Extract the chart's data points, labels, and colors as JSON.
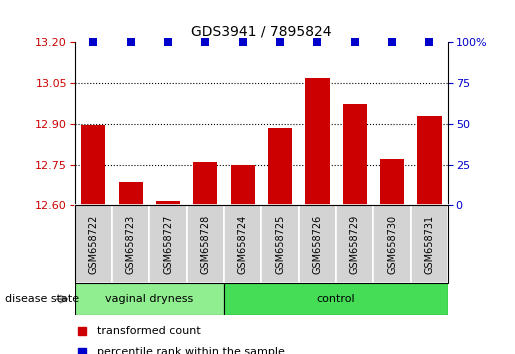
{
  "title": "GDS3941 / 7895824",
  "samples": [
    "GSM658722",
    "GSM658723",
    "GSM658727",
    "GSM658728",
    "GSM658724",
    "GSM658725",
    "GSM658726",
    "GSM658729",
    "GSM658730",
    "GSM658731"
  ],
  "red_values": [
    12.895,
    12.685,
    12.615,
    12.76,
    12.75,
    12.885,
    13.07,
    12.975,
    12.77,
    12.93
  ],
  "blue_values": [
    100,
    100,
    100,
    100,
    100,
    100,
    100,
    100,
    100,
    100
  ],
  "ylim_left": [
    12.6,
    13.2
  ],
  "ylim_right": [
    0,
    100
  ],
  "yticks_left": [
    12.6,
    12.75,
    12.9,
    13.05,
    13.2
  ],
  "yticks_right": [
    0,
    25,
    50,
    75,
    100
  ],
  "grid_lines": [
    12.75,
    12.9,
    13.05
  ],
  "group1_label": "vaginal dryness",
  "group1_count": 4,
  "group2_label": "control",
  "group2_count": 6,
  "disease_state_label": "disease state",
  "legend_red": "transformed count",
  "legend_blue": "percentile rank within the sample",
  "bar_color": "#CC0000",
  "blue_color": "#0000CC",
  "group1_bg": "#90EE90",
  "group2_bg": "#44DD55",
  "sample_bg": "#D3D3D3",
  "title_fontsize": 10,
  "tick_fontsize": 8,
  "label_fontsize": 8
}
